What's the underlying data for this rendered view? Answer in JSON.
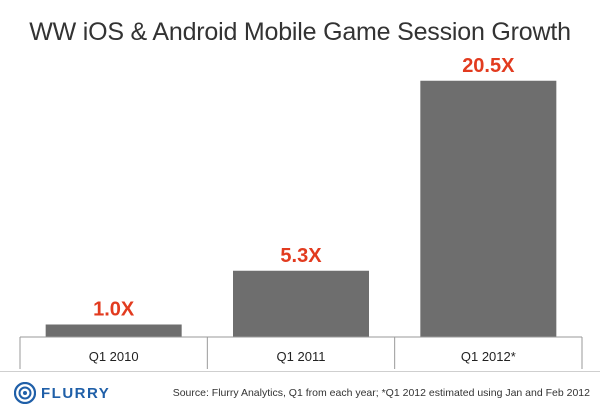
{
  "title": "WW iOS & Android Mobile Game Session Growth",
  "colors": {
    "bar": "#6e6e6e",
    "value_label": "#e23b1f",
    "axis": "#9a9a9a",
    "logo": "#1f5fa8"
  },
  "footer": {
    "logo_text": "FLURRY",
    "logo_icon": "flurry-logo-icon",
    "source": "Source: Flurry Analytics, Q1 from each year; *Q1 2012 estimated using Jan and Feb 2012"
  },
  "chart_data": {
    "type": "bar",
    "title": "WW iOS & Android Mobile Game Session Growth",
    "categories": [
      "Q1 2010",
      "Q1 2011",
      "Q1 2012*"
    ],
    "values": [
      1.0,
      5.3,
      20.5
    ],
    "value_labels": [
      "1.0X",
      "5.3X",
      "20.5X"
    ],
    "xlabel": "",
    "ylabel": "",
    "ylim": [
      0,
      22
    ],
    "grid": false,
    "legend": "none"
  }
}
